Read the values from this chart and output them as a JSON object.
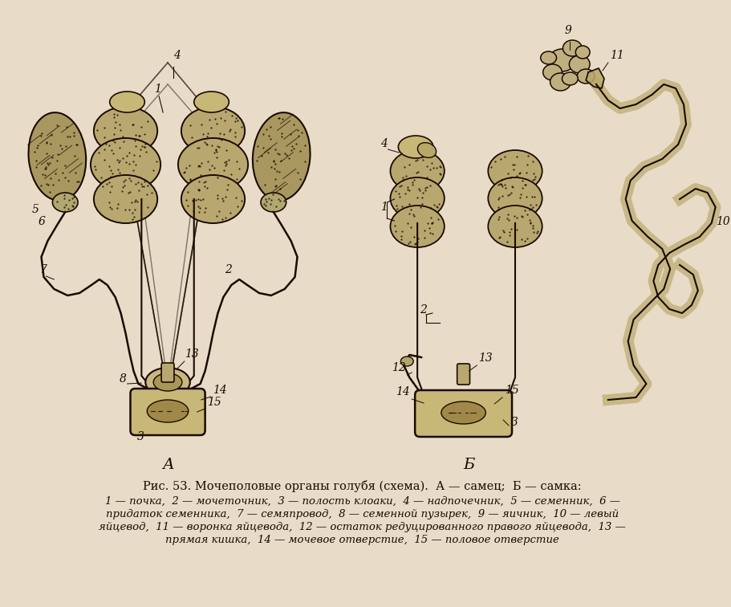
{
  "bg_color": "#e8dcc8",
  "text_color": "#1a0a00",
  "line_color": "#1a0a00",
  "fig_width": 9.12,
  "fig_height": 7.56,
  "label_A": "А",
  "label_B": "Б",
  "title_line1": "Рис. 53. Мочеполовые органы голубя (схема).  А — самец;  Б — самка:",
  "caption_lines": [
    "1 — почка,  2 — мочеточник,  3 — полость клоаки,  4 — надпочечник,  5 — семенник,  6 —",
    "придаток семенника,  7 — семяпровод,  8 — семенной пузырек,  9 — яичник,  10 — левый",
    "яйцевод,  11 — воронка яйцевода,  12 — остаток редуцированного правого яйцевода,  13 —",
    "прямая кишка,  14 — мочевое отверстие,  15 — половое отверстие"
  ]
}
